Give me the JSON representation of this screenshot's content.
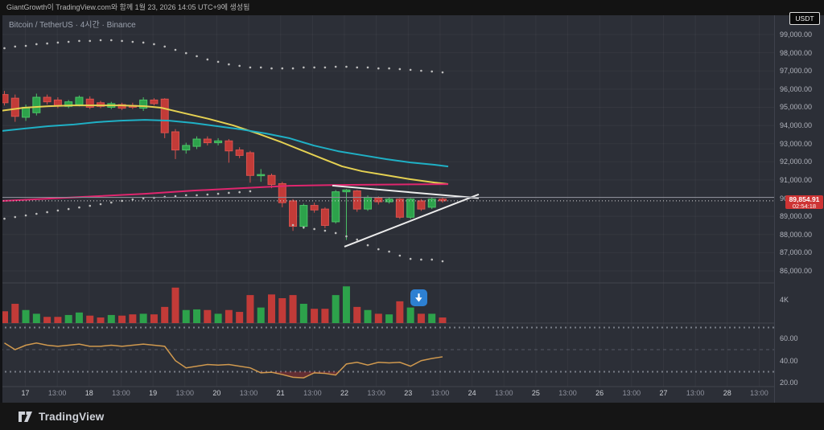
{
  "topbar": {
    "attribution": "GiantGrowth이 TradingView.com와 함께 1월 23, 2026 14:05 UTC+9에 생성됨",
    "currency_button": "USDT"
  },
  "chart_header": {
    "symbol_title": "Bitcoin / TetherUS · 4시간 · Binance"
  },
  "price_badge": {
    "price": "89,854.91",
    "countdown": "02:54:18",
    "bg": "#ce3434"
  },
  "footer": {
    "brand": "TradingView"
  },
  "price_scale_labels": [
    "99,000.00",
    "98,000.00",
    "97,000.00",
    "96,000.00",
    "95,000.00",
    "94,000.00",
    "93,000.00",
    "92,000.00",
    "91,000.00",
    "90,000.00",
    "89,000.00",
    "88,000.00",
    "87,000.00",
    "86,000.00"
  ],
  "volume_scale_label": "4K",
  "rsi_scale_labels": [
    "60.00",
    "40.00",
    "20.00"
  ],
  "time_axis_labels": [
    "17",
    "13:00",
    "18",
    "13:00",
    "19",
    "13:00",
    "20",
    "13:00",
    "21",
    "13:00",
    "22",
    "13:00",
    "23",
    "13:00",
    "24",
    "13:00",
    "25",
    "13:00",
    "26",
    "13:00",
    "27",
    "13:00",
    "28",
    "13:00"
  ],
  "colors": {
    "bg": "#2c2f37",
    "up": "#2da24b",
    "up_border": "#4cc468",
    "down": "#c23b38",
    "down_border": "#da524e",
    "ma_yellow": "#e5d152",
    "ma_cyan": "#1fb0c5",
    "ma_pink": "#e0266e",
    "rsi_line": "#d0994e",
    "triangle": "#ececec",
    "sar_dot": "#bdbdbd",
    "grid": "rgba(255,255,255,0.045)",
    "separator": "#42454e",
    "price_line_solid": "#8b8e98",
    "price_line_dotted": "#d8d8d8",
    "badge_bg": "#ce3434",
    "goto_blue": "#2d80d2",
    "rsi_oversold_fill": "rgba(190,45,45,0.38)"
  },
  "chart_data": {
    "type": "candlestick",
    "symbol": "Bitcoin / TetherUS",
    "interval": "4시간",
    "exchange": "Binance",
    "y_axis": {
      "min": 86000,
      "max": 99000,
      "tick_step": 1000
    },
    "current_price": 89854.91,
    "horizontal_line_price": 90045,
    "candles_columns": [
      "open",
      "high",
      "low",
      "close"
    ],
    "candles": [
      [
        95700,
        95900,
        95100,
        95250
      ],
      [
        95500,
        95700,
        94200,
        94500
      ],
      [
        94450,
        95150,
        94250,
        95000
      ],
      [
        94700,
        95750,
        94550,
        95550
      ],
      [
        95550,
        95700,
        95150,
        95300
      ],
      [
        95400,
        95550,
        94950,
        95100
      ],
      [
        95050,
        95400,
        94950,
        95300
      ],
      [
        95150,
        95650,
        95050,
        95550
      ],
      [
        95450,
        95600,
        94900,
        95000
      ],
      [
        95250,
        95350,
        94950,
        95050
      ],
      [
        95000,
        95300,
        94900,
        95200
      ],
      [
        95150,
        95250,
        94850,
        94950
      ],
      [
        95100,
        95250,
        94900,
        95000
      ],
      [
        94950,
        95550,
        94800,
        95400
      ],
      [
        95400,
        95500,
        95100,
        95200
      ],
      [
        95450,
        95500,
        93300,
        93600
      ],
      [
        93650,
        93800,
        92150,
        92650
      ],
      [
        92650,
        93050,
        92450,
        92900
      ],
      [
        92850,
        93400,
        92700,
        93250
      ],
      [
        93250,
        93400,
        92900,
        93050
      ],
      [
        93050,
        93300,
        92900,
        93150
      ],
      [
        93150,
        93250,
        91950,
        92600
      ],
      [
        92650,
        92800,
        92200,
        92350
      ],
      [
        92500,
        92600,
        90850,
        91250
      ],
      [
        91250,
        91600,
        90900,
        91300
      ],
      [
        91250,
        91350,
        90550,
        90750
      ],
      [
        90800,
        90900,
        89500,
        89750
      ],
      [
        89850,
        89950,
        88200,
        88450
      ],
      [
        88450,
        89700,
        88300,
        89600
      ],
      [
        89600,
        89750,
        89200,
        89350
      ],
      [
        89400,
        89500,
        88350,
        88500
      ],
      [
        88700,
        90450,
        88600,
        90350
      ],
      [
        90350,
        90500,
        87700,
        90450
      ],
      [
        90400,
        90450,
        89250,
        89400
      ],
      [
        89400,
        90150,
        89300,
        90050
      ],
      [
        90000,
        90100,
        89650,
        89800
      ],
      [
        89800,
        90050,
        89700,
        89950
      ],
      [
        89950,
        90000,
        88850,
        88950
      ],
      [
        88950,
        90000,
        88850,
        89950
      ],
      [
        89850,
        89950,
        89300,
        89400
      ],
      [
        89500,
        90050,
        89400,
        89950
      ],
      [
        89950,
        90050,
        89750,
        89854.91
      ]
    ],
    "volume_k": [
      1.9,
      3.1,
      2.1,
      1.5,
      1.0,
      1.0,
      1.3,
      1.7,
      1.2,
      0.9,
      1.3,
      1.2,
      1.4,
      1.5,
      1.4,
      2.6,
      5.7,
      2.1,
      2.2,
      2.1,
      1.5,
      2.1,
      1.8,
      4.5,
      2.5,
      4.6,
      4.0,
      4.5,
      3.1,
      2.3,
      2.3,
      4.5,
      5.9,
      2.6,
      2.1,
      1.5,
      1.4,
      3.5,
      2.5,
      1.5,
      1.5,
      0.9
    ],
    "volume_axis_4k": 4,
    "rsi": {
      "values": [
        56,
        50,
        54,
        56,
        54,
        53,
        54,
        55,
        53,
        53,
        54,
        53,
        54,
        55,
        54,
        53,
        40,
        33.5,
        35,
        36.5,
        36,
        36.5,
        35,
        33.5,
        29,
        29.5,
        27.5,
        25,
        24.5,
        29,
        28.5,
        27,
        37,
        38.5,
        36,
        38.5,
        38,
        38.5,
        35,
        40,
        42,
        43.5
      ],
      "levels": [
        70,
        50,
        30
      ]
    },
    "ma_yellow": [
      [
        0,
        94800
      ],
      [
        30,
        94975
      ],
      [
        60,
        95060
      ],
      [
        90,
        95105
      ],
      [
        120,
        95105
      ],
      [
        150,
        95105
      ],
      [
        180,
        95060
      ],
      [
        200,
        94975
      ],
      [
        230,
        94665
      ],
      [
        260,
        94355
      ],
      [
        290,
        94000
      ],
      [
        320,
        93560
      ],
      [
        350,
        93075
      ],
      [
        375,
        92630
      ],
      [
        400,
        92190
      ],
      [
        425,
        91750
      ],
      [
        450,
        91480
      ],
      [
        480,
        91260
      ],
      [
        510,
        91040
      ],
      [
        540,
        90860
      ],
      [
        557,
        90775
      ]
    ],
    "ma_cyan": [
      [
        0,
        93690
      ],
      [
        30,
        93825
      ],
      [
        60,
        93960
      ],
      [
        90,
        94045
      ],
      [
        120,
        94180
      ],
      [
        150,
        94265
      ],
      [
        180,
        94310
      ],
      [
        210,
        94265
      ],
      [
        240,
        94135
      ],
      [
        270,
        93960
      ],
      [
        300,
        93780
      ],
      [
        330,
        93560
      ],
      [
        360,
        93295
      ],
      [
        390,
        92895
      ],
      [
        420,
        92585
      ],
      [
        450,
        92365
      ],
      [
        480,
        92145
      ],
      [
        510,
        91965
      ],
      [
        540,
        91835
      ],
      [
        557,
        91745
      ]
    ],
    "ma_pink": [
      [
        0,
        89840
      ],
      [
        60,
        89975
      ],
      [
        120,
        90105
      ],
      [
        180,
        90240
      ],
      [
        240,
        90415
      ],
      [
        300,
        90550
      ],
      [
        360,
        90680
      ],
      [
        420,
        90725
      ],
      [
        480,
        90750
      ],
      [
        557,
        90770
      ]
    ],
    "sar_upper": [
      98250,
      98340,
      98380,
      98470,
      98510,
      98560,
      98600,
      98650,
      98650,
      98690,
      98690,
      98650,
      98600,
      98560,
      98470,
      98340,
      98160,
      97980,
      97810,
      97630,
      97500,
      97360,
      97280,
      97190,
      97190,
      97140,
      97140,
      97140,
      97190,
      97190,
      97190,
      97230,
      97230,
      97190,
      97190,
      97140,
      97140,
      97100,
      97060,
      97010,
      96970,
      96920
    ],
    "sar_lower_left": {
      "start_index": 0,
      "prices": [
        88870,
        88960,
        89050,
        89140,
        89230,
        89320,
        89400,
        89490,
        89580,
        89670,
        89760,
        89850,
        89930,
        89980,
        90020,
        90070,
        90110,
        90160,
        90160,
        90200,
        90240,
        90290,
        90330,
        90380
      ]
    },
    "sar_lower_right": {
      "start_index": 27,
      "prices": [
        88520,
        88390,
        88300,
        88210,
        88080,
        87900,
        87720,
        87410,
        87190,
        87060,
        86840,
        86660,
        86620,
        86620,
        86530
      ]
    },
    "triangle": {
      "upper": [
        [
          413,
          90690
        ],
        [
          595,
          90000
        ]
      ],
      "lower": [
        [
          428,
          87330
        ],
        [
          595,
          90210
        ]
      ]
    }
  }
}
